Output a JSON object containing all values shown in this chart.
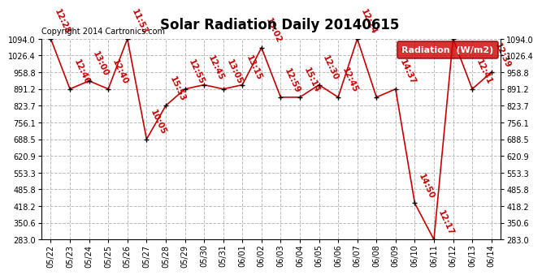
{
  "title": "Solar Radiation Daily 20140615",
  "copyright_text": "Copyright 2014 Cartronics.com",
  "legend_label": "Radiation  (W/m2)",
  "background_color": "#ffffff",
  "plot_bg_color": "#ffffff",
  "grid_color": "#bbbbbb",
  "line_color": "#cc0000",
  "point_color": "#000000",
  "legend_bg": "#cc0000",
  "legend_fg": "#ffffff",
  "dates": [
    "05/22",
    "05/23",
    "05/24",
    "05/25",
    "05/26",
    "05/27",
    "05/28",
    "05/29",
    "05/30",
    "05/31",
    "06/01",
    "06/02",
    "06/03",
    "06/04",
    "06/05",
    "06/06",
    "06/07",
    "06/08",
    "06/09",
    "06/10",
    "06/11",
    "06/12",
    "06/13",
    "06/14"
  ],
  "values": [
    1094.0,
    891.2,
    924.0,
    891.2,
    1094.0,
    688.5,
    823.7,
    891.2,
    908.0,
    891.2,
    908.0,
    1058.0,
    858.0,
    858.0,
    908.0,
    858.0,
    1094.0,
    858.0,
    891.2,
    430.0,
    283.0,
    1094.0,
    891.2,
    958.8
  ],
  "labels": [
    "12:28",
    "12:46",
    "13:00",
    "12:40",
    "11:53",
    "10:05",
    "15:53",
    "12:55",
    "12:45",
    "13:05",
    "13:15",
    "13:02",
    "12:59",
    "15:14",
    "12:30",
    "12:45",
    "12:24",
    "",
    "14:37",
    "14:50",
    "12:17",
    "",
    "12:41",
    "12:39"
  ],
  "ylim_min": 283.0,
  "ylim_max": 1094.0,
  "yticks": [
    283.0,
    350.6,
    418.2,
    485.8,
    553.3,
    620.9,
    688.5,
    756.1,
    823.7,
    891.2,
    958.8,
    1026.4,
    1094.0
  ],
  "title_fontsize": 12,
  "label_fontsize": 7.5,
  "tick_fontsize": 7,
  "copyright_fontsize": 7
}
